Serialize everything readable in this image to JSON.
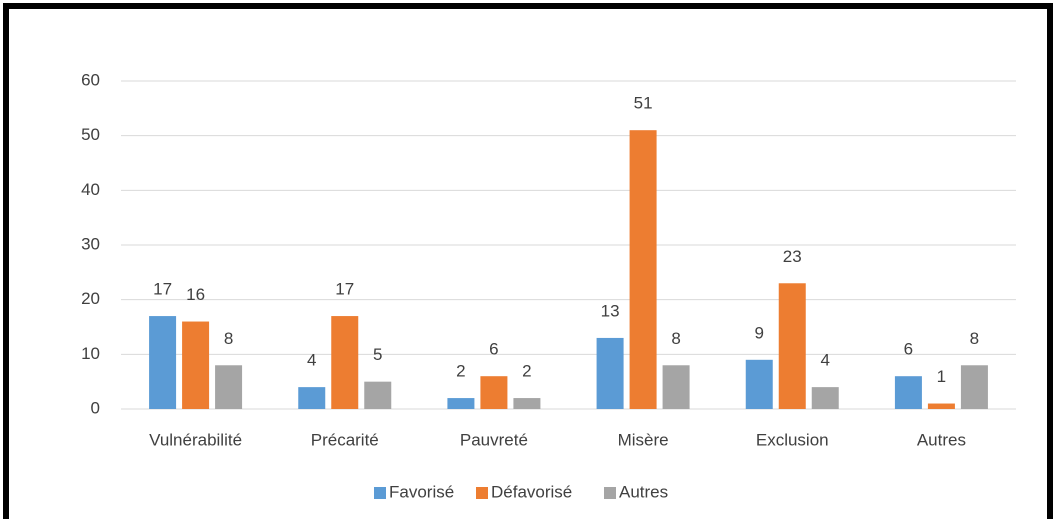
{
  "chart_data": {
    "type": "bar",
    "categories": [
      "Vulnérabilité",
      "Précarité",
      "Pauvreté",
      "Misère",
      "Exclusion",
      "Autres"
    ],
    "series": [
      {
        "name": "Favorisé",
        "color": "#5b9bd5",
        "values": [
          17,
          4,
          2,
          13,
          9,
          6
        ]
      },
      {
        "name": "Défavorisé",
        "color": "#ed7d31",
        "values": [
          16,
          17,
          6,
          51,
          23,
          1
        ]
      },
      {
        "name": "Autres",
        "color": "#a5a5a5",
        "values": [
          8,
          5,
          2,
          8,
          4,
          8
        ]
      }
    ],
    "ylim": [
      0,
      60
    ],
    "yticks": [
      0,
      10,
      20,
      30,
      40,
      50,
      60
    ],
    "grid": true,
    "legend": "bottom"
  }
}
